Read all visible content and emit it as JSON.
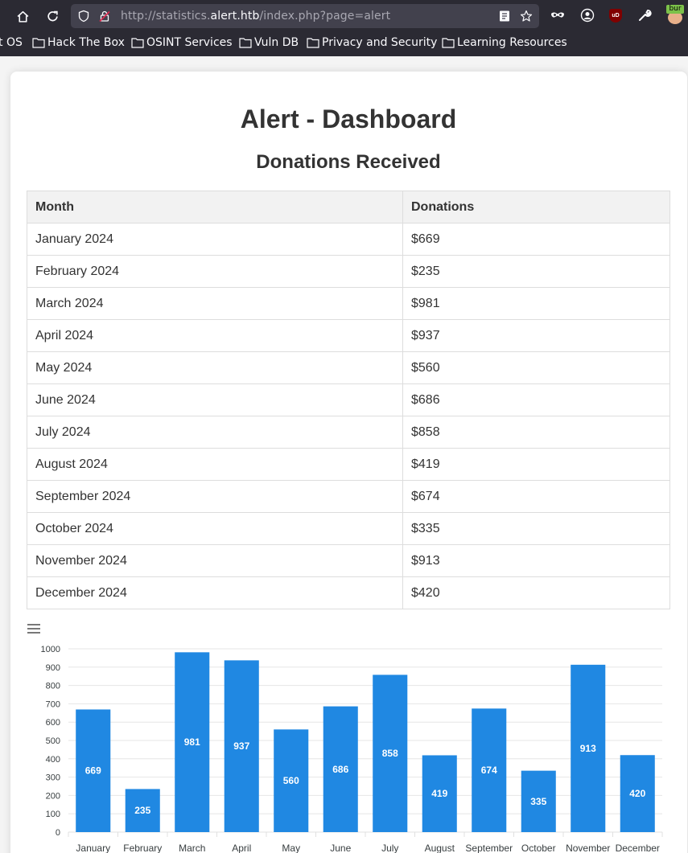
{
  "browser": {
    "url_prefix": "http://statistics.",
    "url_host": "alert.htb",
    "url_path": "/index.php?page=alert",
    "bookmarks": [
      "t OS",
      "Hack The Box",
      "OSINT Services",
      "Vuln DB",
      "Privacy and Security",
      "Learning Resources"
    ],
    "ublock_label": "uD",
    "burp_label": "bur"
  },
  "page": {
    "title": "Alert - Dashboard",
    "subtitle": "Donations Received"
  },
  "table": {
    "headers": [
      "Month",
      "Donations"
    ],
    "rows": [
      [
        "January 2024",
        "$669"
      ],
      [
        "February 2024",
        "$235"
      ],
      [
        "March 2024",
        "$981"
      ],
      [
        "April 2024",
        "$937"
      ],
      [
        "May 2024",
        "$560"
      ],
      [
        "June 2024",
        "$686"
      ],
      [
        "July 2024",
        "$858"
      ],
      [
        "August 2024",
        "$419"
      ],
      [
        "September 2024",
        "$674"
      ],
      [
        "October 2024",
        "$335"
      ],
      [
        "November 2024",
        "$913"
      ],
      [
        "December 2024",
        "$420"
      ]
    ]
  },
  "chart_data": {
    "type": "bar",
    "categories": [
      "January",
      "February",
      "March",
      "April",
      "May",
      "June",
      "July",
      "August",
      "September",
      "October",
      "November",
      "December"
    ],
    "values": [
      669,
      235,
      981,
      937,
      560,
      686,
      858,
      419,
      674,
      335,
      913,
      420
    ],
    "ylim": [
      0,
      1000
    ],
    "yticks": [
      0,
      100,
      200,
      300,
      400,
      500,
      600,
      700,
      800,
      900,
      1000
    ],
    "bar_color": "#2088e2",
    "grid": true,
    "data_labels": true
  },
  "colors": {
    "chrome_bg": "#2b2a33",
    "urlbar_bg": "#42414d",
    "page_bg": "#f4f4f4",
    "header_bg": "#f2f2f2"
  }
}
